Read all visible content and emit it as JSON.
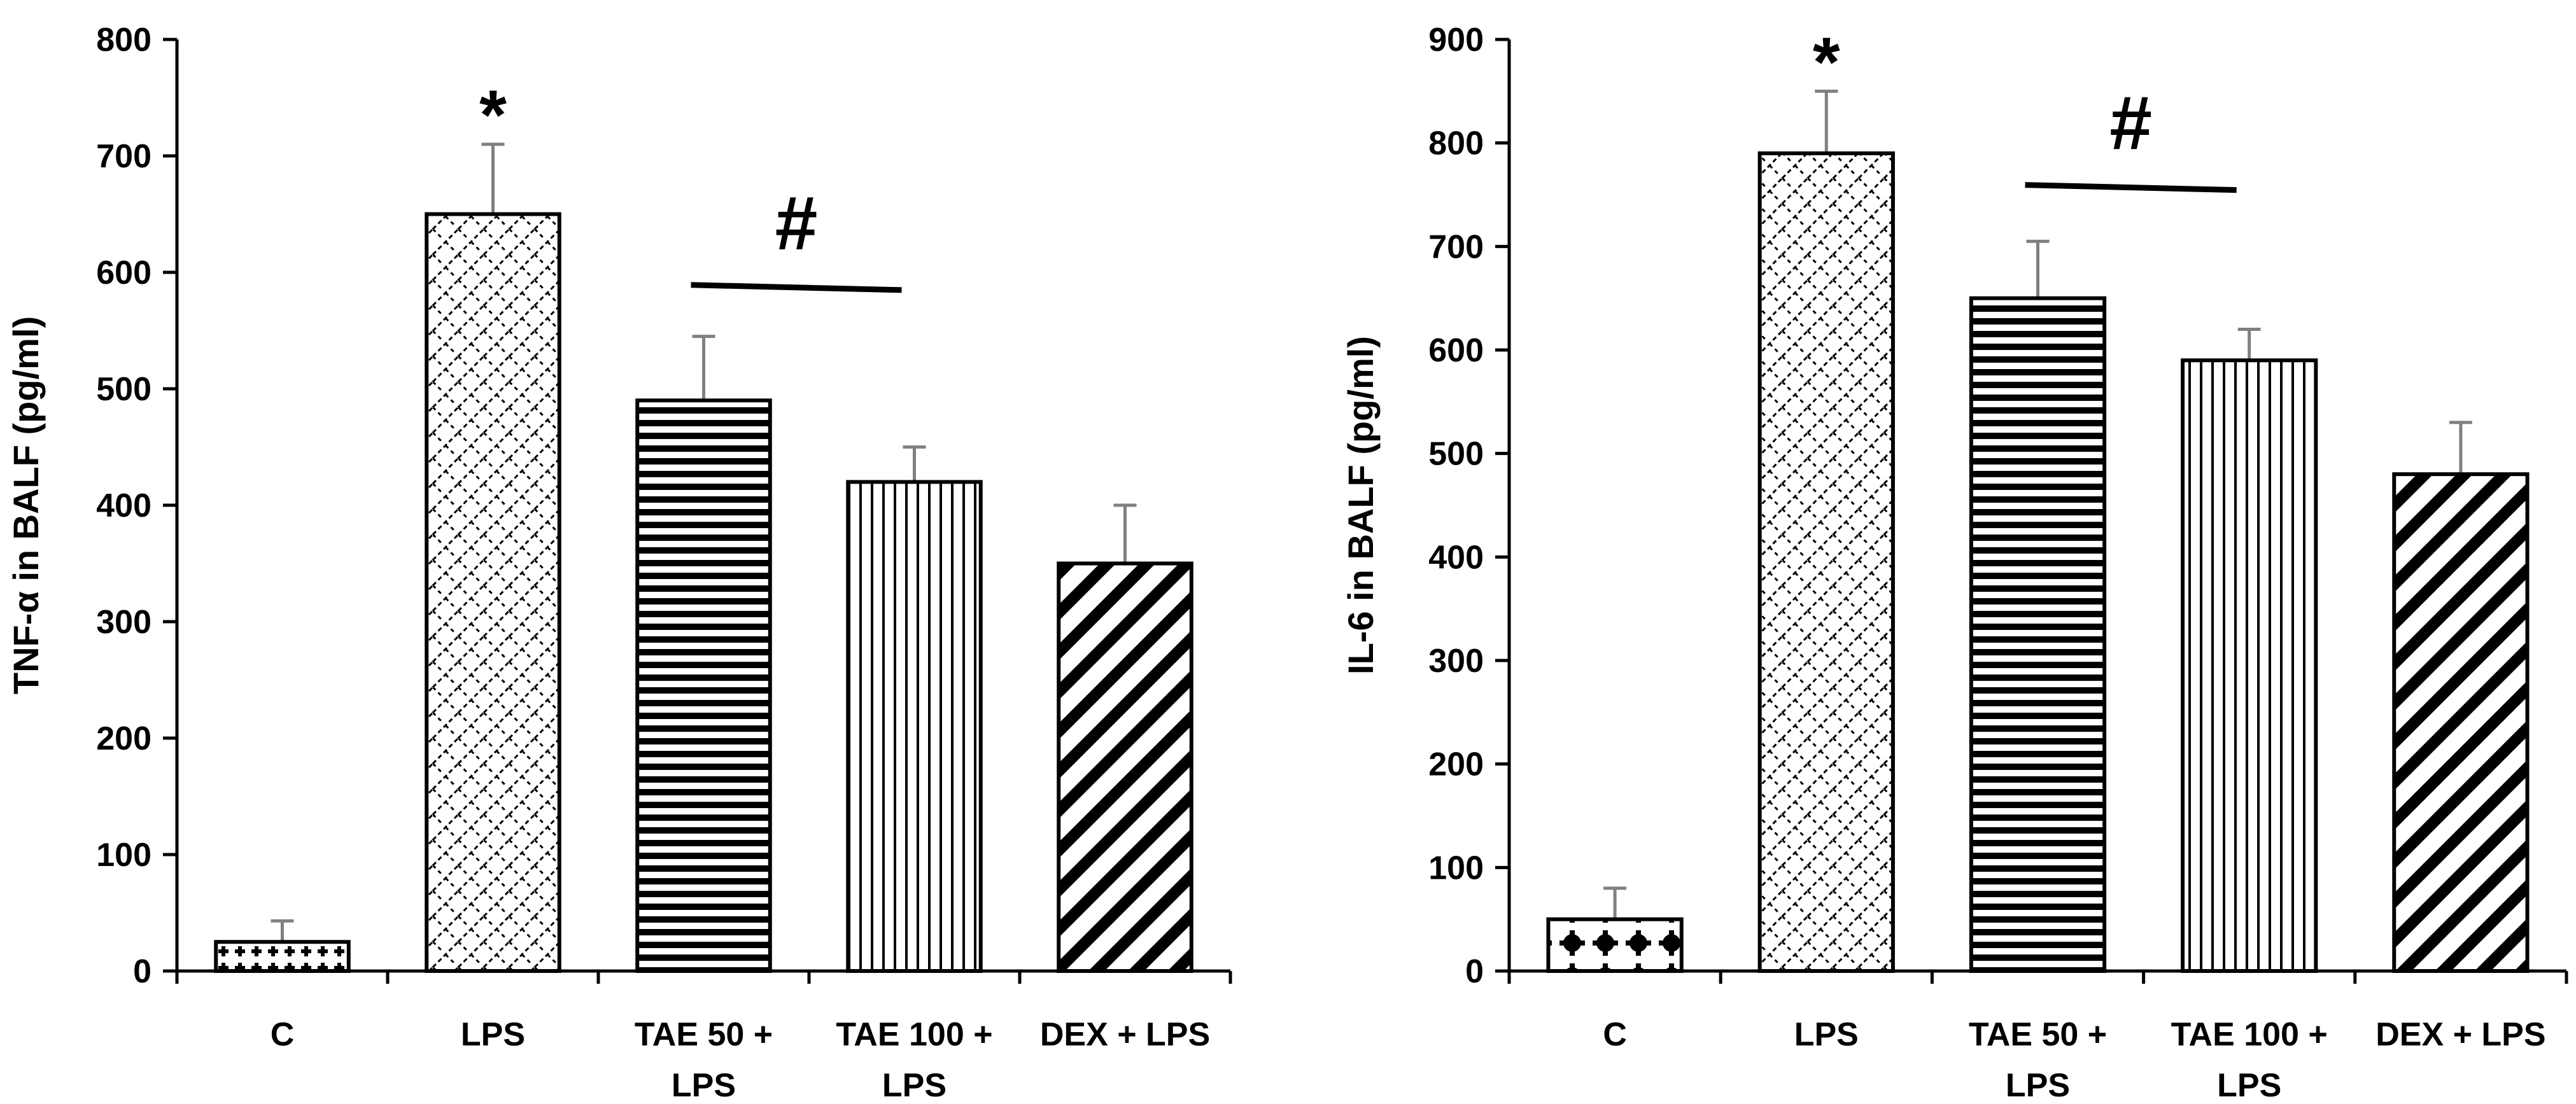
{
  "chart_data": [
    {
      "type": "bar",
      "ylabel": "TNF-α in BALF (pg/ml)",
      "ylim": [
        0,
        800
      ],
      "yticks": [
        0,
        100,
        200,
        300,
        400,
        500,
        600,
        700,
        800
      ],
      "categories": [
        {
          "lines": [
            "C"
          ]
        },
        {
          "lines": [
            "LPS"
          ]
        },
        {
          "lines": [
            "TAE 50 +",
            "LPS"
          ]
        },
        {
          "lines": [
            "TAE 100 +",
            "LPS"
          ]
        },
        {
          "lines": [
            "DEX + LPS"
          ]
        }
      ],
      "values": [
        25,
        650,
        490,
        420,
        350
      ],
      "errors": [
        18,
        60,
        55,
        30,
        50
      ],
      "patterns": [
        "cross-dots",
        "zigzag",
        "horizontal-stripes",
        "vertical-stripes",
        "diagonal-stripes"
      ],
      "annotations": {
        "star": {
          "text": "*",
          "category_index": 1
        },
        "hash": {
          "text": "#",
          "from_index": 2,
          "to_index": 3,
          "line_value": 587
        }
      }
    },
    {
      "type": "bar",
      "ylabel": "IL-6 in BALF (pg/ml)",
      "ylim": [
        0,
        900
      ],
      "yticks": [
        0,
        100,
        200,
        300,
        400,
        500,
        600,
        700,
        800,
        900
      ],
      "categories": [
        {
          "lines": [
            "C"
          ]
        },
        {
          "lines": [
            "LPS"
          ]
        },
        {
          "lines": [
            "TAE 50 +",
            "LPS"
          ]
        },
        {
          "lines": [
            "TAE 100 +",
            "LPS"
          ]
        },
        {
          "lines": [
            "DEX + LPS"
          ]
        }
      ],
      "values": [
        50,
        790,
        650,
        590,
        480
      ],
      "errors": [
        30,
        60,
        55,
        30,
        50
      ],
      "patterns": [
        "big-dots",
        "zigzag",
        "horizontal-stripes",
        "vertical-stripes",
        "diagonal-stripes"
      ],
      "annotations": {
        "star": {
          "text": "*",
          "category_index": 1
        },
        "hash": {
          "text": "#",
          "from_index": 2,
          "to_index": 3,
          "line_value": 757
        }
      }
    }
  ]
}
